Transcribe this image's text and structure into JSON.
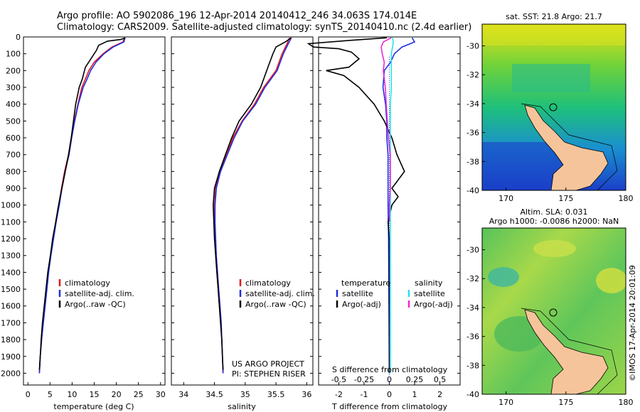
{
  "header": {
    "line1": "Argo profile: AO 5902086_196 12-Apr-2014 20140412_246 34.063S 174.014E",
    "line2": "Climatology: CARS2009. Satellite-adjusted climatology: synTS_20140410.nc (2.4d earlier)"
  },
  "credit": {
    "project": "US ARGO PROJECT",
    "pi": "PI: STEPHEN RISER"
  },
  "vertical_stamp": "©IMOS 17-Apr-2014 20:01:09",
  "colors": {
    "climatology": "#e8161b",
    "satellite": "#1f2fe0",
    "argo": "#000000",
    "salinity_satellite": "#26e3e8",
    "salinity_argo": "#e82ad8",
    "land": "#f5c49a"
  },
  "chart_data": [
    {
      "id": "temperature",
      "type": "line",
      "xlabel": "temperature (deg C)",
      "x_ticks": [
        "0",
        "5",
        "10",
        "15",
        "20",
        "25",
        "30"
      ],
      "xlim": [
        -1,
        31
      ],
      "ylim": [
        2070,
        0
      ],
      "y_ticks": [
        "0",
        "100",
        "200",
        "300",
        "400",
        "500",
        "600",
        "700",
        "800",
        "900",
        "1000",
        "1100",
        "1200",
        "1300",
        "1400",
        "1500",
        "1600",
        "1700",
        "1800",
        "1900",
        "2000"
      ],
      "legend": [
        "climatology",
        "satellite-adj. clim.",
        "Argo(..raw -QC)"
      ],
      "series": [
        {
          "name": "climatology",
          "color": "#e8161b",
          "points": [
            [
              21.8,
              5
            ],
            [
              21.5,
              30
            ],
            [
              19,
              60
            ],
            [
              17,
              100
            ],
            [
              15,
              150
            ],
            [
              13.8,
              200
            ],
            [
              13,
              250
            ],
            [
              12.2,
              300
            ],
            [
              11.3,
              400
            ],
            [
              10.5,
              500
            ],
            [
              9.8,
              600
            ],
            [
              9.2,
              700
            ],
            [
              8.3,
              800
            ],
            [
              7.6,
              900
            ],
            [
              7,
              1000
            ],
            [
              6.3,
              1100
            ],
            [
              5.7,
              1200
            ],
            [
              5.1,
              1300
            ],
            [
              4.6,
              1400
            ],
            [
              4.2,
              1500
            ],
            [
              3.8,
              1600
            ],
            [
              3.4,
              1700
            ],
            [
              3.1,
              1800
            ],
            [
              2.8,
              1900
            ],
            [
              2.6,
              2000
            ]
          ]
        },
        {
          "name": "satellite",
          "color": "#1f2fe0",
          "points": [
            [
              22,
              5
            ],
            [
              21.7,
              30
            ],
            [
              19.3,
              60
            ],
            [
              17.2,
              100
            ],
            [
              15.4,
              150
            ],
            [
              14.2,
              200
            ],
            [
              13.4,
              250
            ],
            [
              12.5,
              300
            ],
            [
              11.4,
              400
            ],
            [
              10.6,
              500
            ],
            [
              9.9,
              600
            ],
            [
              9.3,
              700
            ],
            [
              8.4,
              800
            ],
            [
              7.7,
              900
            ],
            [
              7.1,
              1000
            ],
            [
              6.4,
              1100
            ],
            [
              5.8,
              1200
            ],
            [
              5.2,
              1300
            ],
            [
              4.7,
              1400
            ],
            [
              4.3,
              1500
            ],
            [
              3.9,
              1600
            ],
            [
              3.5,
              1700
            ],
            [
              3.1,
              1800
            ],
            [
              2.8,
              1900
            ],
            [
              2.6,
              2000
            ]
          ]
        },
        {
          "name": "argo",
          "color": "#000000",
          "points": [
            [
              22,
              5
            ],
            [
              21,
              15
            ],
            [
              18,
              25
            ],
            [
              16,
              50
            ],
            [
              15.5,
              80
            ],
            [
              14.5,
              120
            ],
            [
              13,
              180
            ],
            [
              12.3,
              250
            ],
            [
              11.6,
              300
            ],
            [
              11.2,
              350
            ],
            [
              10.8,
              400
            ],
            [
              10.3,
              500
            ],
            [
              9.8,
              600
            ],
            [
              9.2,
              700
            ],
            [
              8.6,
              780
            ],
            [
              8,
              860
            ],
            [
              7.3,
              950
            ],
            [
              6.8,
              1020
            ],
            [
              6.3,
              1100
            ],
            [
              5.6,
              1200
            ],
            [
              5.1,
              1300
            ],
            [
              4.5,
              1400
            ],
            [
              4.1,
              1500
            ],
            [
              3.7,
              1600
            ],
            [
              3.3,
              1700
            ],
            [
              3,
              1800
            ],
            [
              2.8,
              1900
            ],
            [
              2.6,
              1980
            ]
          ]
        }
      ]
    },
    {
      "id": "salinity",
      "type": "line",
      "xlabel": "salinity",
      "x_ticks": [
        "34",
        "34.5",
        "35",
        "35.5",
        "36"
      ],
      "xlim": [
        33.8,
        36.1
      ],
      "ylim": [
        2070,
        0
      ],
      "legend": [
        "climatology",
        "satellite-adj. clim.",
        "Argo(..raw -QC)"
      ],
      "series": [
        {
          "name": "climatology",
          "color": "#e8161b",
          "points": [
            [
              35.72,
              5
            ],
            [
              35.68,
              40
            ],
            [
              35.6,
              100
            ],
            [
              35.55,
              150
            ],
            [
              35.5,
              200
            ],
            [
              35.4,
              250
            ],
            [
              35.3,
              300
            ],
            [
              35.15,
              400
            ],
            [
              34.95,
              500
            ],
            [
              34.8,
              600
            ],
            [
              34.7,
              700
            ],
            [
              34.58,
              800
            ],
            [
              34.52,
              900
            ],
            [
              34.5,
              1000
            ],
            [
              34.5,
              1100
            ],
            [
              34.51,
              1200
            ],
            [
              34.52,
              1300
            ],
            [
              34.54,
              1400
            ],
            [
              34.56,
              1500
            ],
            [
              34.58,
              1600
            ],
            [
              34.6,
              1700
            ],
            [
              34.62,
              1800
            ],
            [
              34.63,
              1900
            ],
            [
              34.64,
              2000
            ]
          ]
        },
        {
          "name": "satellite",
          "color": "#1f2fe0",
          "points": [
            [
              35.75,
              5
            ],
            [
              35.7,
              40
            ],
            [
              35.62,
              100
            ],
            [
              35.57,
              150
            ],
            [
              35.52,
              200
            ],
            [
              35.42,
              250
            ],
            [
              35.32,
              300
            ],
            [
              35.17,
              400
            ],
            [
              34.96,
              500
            ],
            [
              34.82,
              600
            ],
            [
              34.71,
              700
            ],
            [
              34.6,
              800
            ],
            [
              34.53,
              900
            ],
            [
              34.51,
              1000
            ],
            [
              34.51,
              1100
            ],
            [
              34.52,
              1200
            ],
            [
              34.53,
              1300
            ],
            [
              34.55,
              1400
            ],
            [
              34.57,
              1500
            ],
            [
              34.59,
              1600
            ],
            [
              34.61,
              1700
            ],
            [
              34.62,
              1800
            ],
            [
              34.63,
              1900
            ],
            [
              34.64,
              2000
            ]
          ]
        },
        {
          "name": "argo",
          "color": "#000000",
          "points": [
            [
              35.75,
              5
            ],
            [
              35.65,
              30
            ],
            [
              35.5,
              60
            ],
            [
              35.45,
              100
            ],
            [
              35.4,
              150
            ],
            [
              35.35,
              200
            ],
            [
              35.3,
              250
            ],
            [
              35.25,
              300
            ],
            [
              35.1,
              400
            ],
            [
              34.9,
              500
            ],
            [
              34.78,
              600
            ],
            [
              34.68,
              700
            ],
            [
              34.58,
              800
            ],
            [
              34.5,
              900
            ],
            [
              34.48,
              1000
            ],
            [
              34.49,
              1100
            ],
            [
              34.5,
              1200
            ],
            [
              34.52,
              1300
            ],
            [
              34.54,
              1400
            ],
            [
              34.56,
              1500
            ],
            [
              34.58,
              1600
            ],
            [
              34.6,
              1700
            ],
            [
              34.62,
              1800
            ],
            [
              34.63,
              1900
            ],
            [
              34.64,
              1980
            ]
          ]
        }
      ]
    },
    {
      "id": "difference",
      "type": "line",
      "xlabel": "T difference from climatology",
      "top_label": "S difference from climatology",
      "x_ticks": [
        "-2",
        "-1",
        "0",
        "1",
        "2"
      ],
      "x_ticks_top": [
        "-0.5",
        "-0.25",
        "0",
        "0.25",
        "0.5"
      ],
      "xlim": [
        -2.8,
        2.8
      ],
      "legend_titles": [
        "temperature",
        "salinity"
      ],
      "legend_t": [
        "satellite",
        "Argo(-adj)"
      ],
      "legend_s": [
        "satellite",
        "Argo(-adj)"
      ],
      "series": [
        {
          "name": "T satellite",
          "color": "#1f2fe0",
          "points": [
            [
              0.9,
              5
            ],
            [
              1,
              30
            ],
            [
              0.5,
              60
            ],
            [
              0.2,
              100
            ],
            [
              0.05,
              150
            ],
            [
              -0.2,
              200
            ],
            [
              -0.25,
              300
            ],
            [
              -0.15,
              400
            ],
            [
              -0.1,
              500
            ],
            [
              -0.1,
              600
            ],
            [
              -0.05,
              700
            ],
            [
              -0.05,
              800
            ],
            [
              -0.05,
              900
            ],
            [
              -0.05,
              1000
            ],
            [
              -0.03,
              1200
            ],
            [
              -0.02,
              1500
            ],
            [
              0,
              2000
            ]
          ]
        },
        {
          "name": "T argo",
          "color": "#000000",
          "points": [
            [
              -0.1,
              5
            ],
            [
              -1.5,
              20
            ],
            [
              -3.2,
              40
            ],
            [
              -3,
              60
            ],
            [
              -2,
              70
            ],
            [
              -1.5,
              90
            ],
            [
              -1.2,
              130
            ],
            [
              -1.6,
              180
            ],
            [
              -2.5,
              200
            ],
            [
              -1.8,
              230
            ],
            [
              -1.2,
              300
            ],
            [
              -0.6,
              400
            ],
            [
              -0.2,
              500
            ],
            [
              0.1,
              600
            ],
            [
              0.3,
              700
            ],
            [
              0.6,
              800
            ],
            [
              0.3,
              860
            ],
            [
              0.1,
              900
            ],
            [
              0.35,
              950
            ],
            [
              0.1,
              1000
            ],
            [
              -0.05,
              1100
            ],
            [
              0,
              1200
            ],
            [
              0,
              1500
            ],
            [
              0,
              2000
            ]
          ]
        },
        {
          "name": "S satellite",
          "color": "#26e3e8",
          "points": [
            [
              0.03,
              5
            ],
            [
              0.04,
              30
            ],
            [
              0.02,
              100
            ],
            [
              0.02,
              200
            ],
            [
              0.02,
              300
            ],
            [
              0.01,
              400
            ],
            [
              0.01,
              600
            ],
            [
              0.01,
              800
            ],
            [
              0.01,
              1000
            ],
            [
              0.01,
              1200
            ],
            [
              0.01,
              1500
            ],
            [
              0.01,
              2000
            ]
          ]
        },
        {
          "name": "S argo",
          "color": "#e82ad8",
          "points": [
            [
              0.02,
              5
            ],
            [
              -0.06,
              30
            ],
            [
              -0.08,
              60
            ],
            [
              -0.07,
              100
            ],
            [
              -0.05,
              150
            ],
            [
              -0.06,
              200
            ],
            [
              -0.04,
              300
            ],
            [
              -0.03,
              400
            ],
            [
              -0.02,
              500
            ],
            [
              -0.01,
              600
            ],
            [
              0.01,
              700
            ],
            [
              0.01,
              800
            ],
            [
              0.01,
              900
            ],
            [
              0.0,
              1000
            ],
            [
              0,
              1100
            ]
          ]
        }
      ]
    },
    {
      "id": "sst-map",
      "type": "heatmap",
      "title": "sat. SST: 21.8 Argo: 21.7",
      "x_ticks": [
        "170",
        "175",
        "180"
      ],
      "y_ticks": [
        "-30",
        "-32",
        "-34",
        "-36",
        "-38",
        "-40"
      ],
      "xlim": [
        168,
        180
      ],
      "ylim": [
        -40,
        -28.5
      ],
      "argo_position": [
        174.014,
        -34.063
      ]
    },
    {
      "id": "sla-map",
      "type": "heatmap",
      "title": "Altim. SLA: 0.031",
      "subtitle": "Argo h1000: -0.0086 h2000: NaN",
      "x_ticks": [
        "170",
        "175",
        "180"
      ],
      "y_ticks": [
        "-30",
        "-32",
        "-34",
        "-36",
        "-38",
        "-40"
      ],
      "xlim": [
        168,
        180
      ],
      "ylim": [
        -40,
        -28.5
      ],
      "argo_position": [
        174.014,
        -34.063
      ]
    }
  ]
}
